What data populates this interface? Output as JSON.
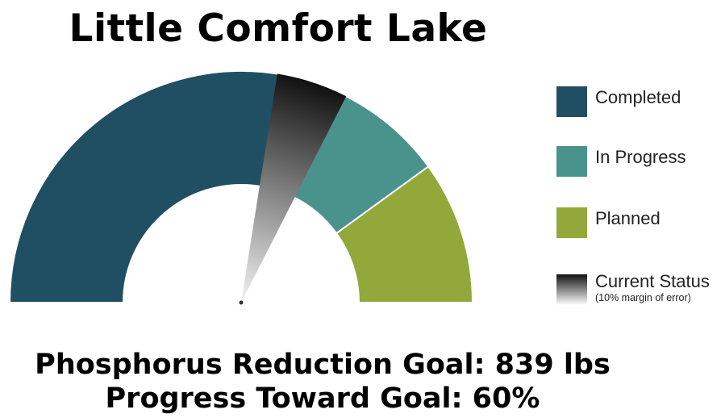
{
  "title": "Little Comfort Lake",
  "legend": [
    {
      "label": "Completed",
      "color": "#204f63"
    },
    {
      "label": "In Progress",
      "color": "#4a938c"
    },
    {
      "label": "Planned",
      "color": "#93a83a"
    },
    {
      "label": "Current Status",
      "note": "(10% margin of error)",
      "gradient": [
        "#111111",
        "#ffffff"
      ]
    }
  ],
  "goal_text": "Phosphorus Reduction Goal: 839 lbs",
  "progress_text": "Progress Toward Goal: 60%",
  "chart_data": {
    "type": "gauge",
    "title": "Little Comfort Lake",
    "range": [
      0,
      100
    ],
    "unit": "%",
    "segments": [
      {
        "name": "Completed",
        "from": 0,
        "to": 56,
        "color": "#204f63"
      },
      {
        "name": "In Progress",
        "from": 56,
        "to": 80,
        "color": "#4a938c"
      },
      {
        "name": "Planned",
        "from": 80,
        "to": 100,
        "color": "#93a83a"
      }
    ],
    "current_status": 60,
    "margin_of_error": 10,
    "goal": {
      "value": 839,
      "unit": "lbs"
    },
    "progress_percent": 60
  }
}
